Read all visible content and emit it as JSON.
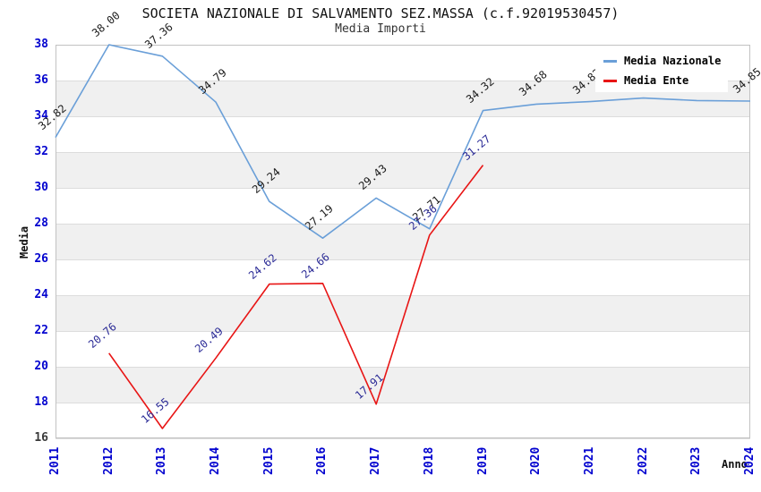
{
  "title": "SOCIETA NAZIONALE DI SALVAMENTO SEZ.MASSA (c.f.92019530457)",
  "subtitle": "Media Importi",
  "legend": {
    "items": [
      {
        "label": "Media Nazionale",
        "color": "#6a9fd8"
      },
      {
        "label": "Media Ente",
        "color": "#e81515"
      }
    ]
  },
  "axes": {
    "y_title": "Media",
    "x_title": "Anno",
    "y_ticks": [
      16,
      18,
      20,
      22,
      24,
      26,
      28,
      30,
      32,
      34,
      36,
      38
    ],
    "x_ticks": [
      2011,
      2012,
      2013,
      2014,
      2015,
      2016,
      2017,
      2018,
      2019,
      2020,
      2021,
      2022,
      2023,
      2024
    ]
  },
  "colors": {
    "band": "#f0f0f0",
    "gridline": "#dcdcdc",
    "plot_border": "#c2c2c2",
    "tick_blue": "#0202cf",
    "tick_dark": "#3a3a3a",
    "nazionale_line": "#6a9fd8",
    "ente_line": "#e81515",
    "nazionale_label": "#1a1a1a",
    "ente_label": "#2a2a96"
  },
  "chart_data": {
    "type": "line",
    "title": "SOCIETA NAZIONALE DI SALVAMENTO SEZ.MASSA (c.f.92019530457)",
    "subtitle": "Media Importi",
    "xlabel": "Anno",
    "ylabel": "Media",
    "xlim": [
      2011,
      2024
    ],
    "ylim": [
      16,
      38
    ],
    "grid": "horizontal-bands",
    "legend_position": "top-right",
    "series": [
      {
        "name": "Media Nazionale",
        "x": [
          2011,
          2012,
          2013,
          2014,
          2015,
          2016,
          2017,
          2018,
          2019,
          2020,
          2021,
          2022,
          2023,
          2024
        ],
        "values": [
          32.82,
          38.0,
          37.36,
          34.79,
          29.24,
          27.19,
          29.43,
          27.71,
          34.32,
          34.68,
          34.82,
          35.02,
          34.88,
          34.85
        ],
        "labels": [
          "32.82",
          "38.00",
          "37.36",
          "34.79",
          "29.24",
          "27.19",
          "29.43",
          "27.71",
          "34.32",
          "34.68",
          "34.82",
          "",
          "",
          "34.85"
        ],
        "note_on_blank_labels": "labels for 2022 and 2023 are hidden behind the legend box in the screenshot"
      },
      {
        "name": "Media Ente",
        "x": [
          2012,
          2013,
          2014,
          2015,
          2016,
          2017,
          2018,
          2019
        ],
        "values": [
          20.76,
          16.55,
          20.49,
          24.62,
          24.66,
          17.91,
          27.36,
          31.27
        ],
        "labels": [
          "20.76",
          "16.55",
          "20.49",
          "24.62",
          "24.66",
          "17.91",
          "27.36",
          "31.27"
        ]
      }
    ]
  }
}
